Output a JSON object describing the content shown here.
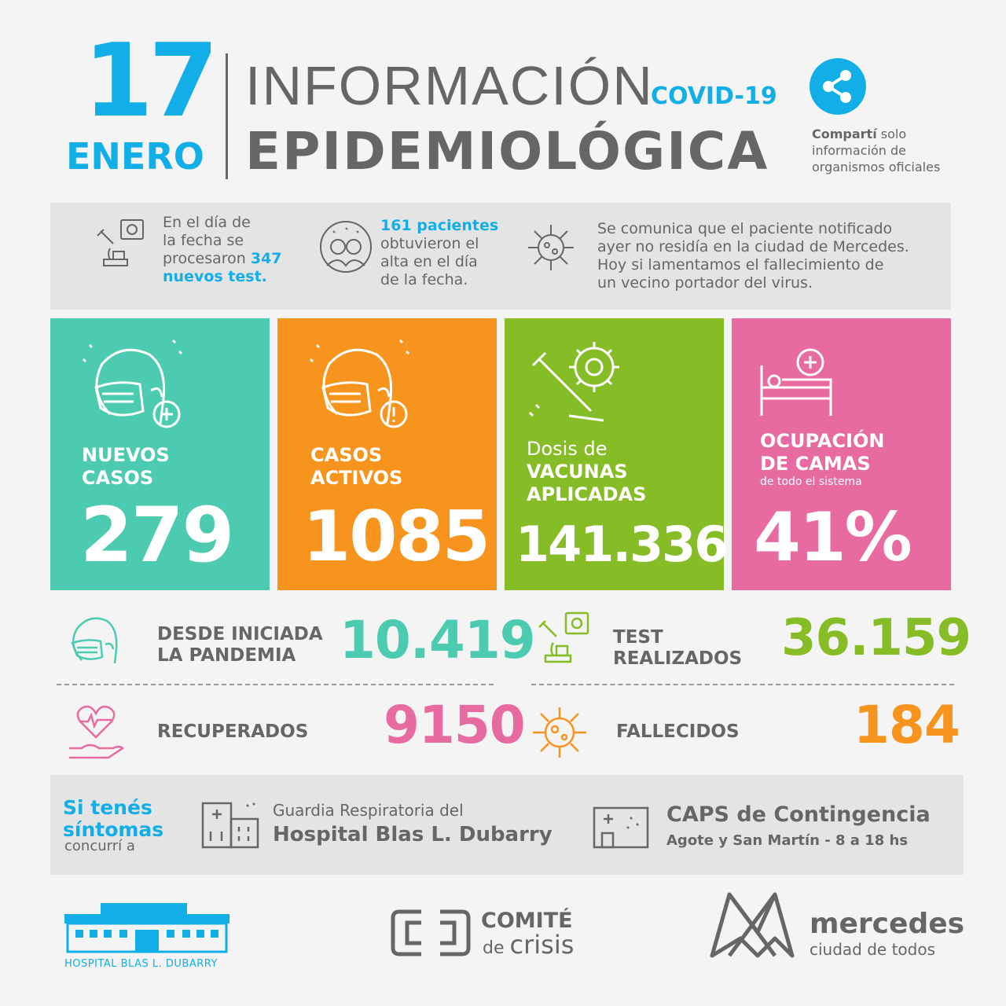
{
  "header": {
    "day": "17",
    "month": "ENERO",
    "title_line1": "INFORMACIÓN",
    "covid_tag": "COVID-19",
    "title_line2": "EPIDEMIOLÓGICA",
    "share_bold": "Compartí",
    "share_rest_1": " solo",
    "share_line2": "información de",
    "share_line3": "organismos oficiales"
  },
  "info": {
    "tests": {
      "l1": "En el día de",
      "l2": "la fecha se",
      "l3": "procesaron ",
      "count": "347",
      "l4": "nuevos test."
    },
    "discharged": {
      "bold": "161 pacientes",
      "l2": "obtuvieron el",
      "l3": "alta en el día",
      "l4": "de la fecha."
    },
    "notice": {
      "l1": "Se comunica que el paciente notificado",
      "l2": "ayer no residía en la ciudad de Mercedes.",
      "l3": "Hoy si lamentamos el fallecimiento de",
      "l4": "un vecino portador del virus."
    }
  },
  "tiles": {
    "new_cases": {
      "l1": "NUEVOS",
      "l2": "CASOS",
      "value": "279",
      "color": "#4ccbb0"
    },
    "active_cases": {
      "l1": "CASOS",
      "l2": "ACTIVOS",
      "value": "1085",
      "color": "#f7941d"
    },
    "vaccines": {
      "pre": "Dosis de",
      "l1": "VACUNAS",
      "l2": "APLICADAS",
      "value": "141.336",
      "color": "#86bc25"
    },
    "beds": {
      "l1": "OCUPACIÓN",
      "l2": "DE CAMAS",
      "sub": "de todo el sistema",
      "value": "41%",
      "color": "#e76aa0"
    }
  },
  "stats": {
    "since_pandemic": {
      "l1": "DESDE INICIADA",
      "l2": "LA PANDEMIA",
      "value": "10.419",
      "color": "#4ccbb0"
    },
    "tests_done": {
      "l1": "TEST",
      "l2": "REALIZADOS",
      "value": "36.159",
      "color": "#86bc25"
    },
    "recovered": {
      "label": "RECUPERADOS",
      "value": "9150",
      "color": "#e76aa0"
    },
    "deceased": {
      "label": "FALLECIDOS",
      "value": "184",
      "color": "#f7941d"
    }
  },
  "symptoms": {
    "l1": "Si tenés",
    "l2": "síntomas",
    "l3": "concurrí a",
    "hospital_pre": "Guardia Respiratoria del",
    "hospital_name": "Hospital Blas L. Dubarry",
    "caps_title": "CAPS de Contingencia",
    "caps_detail": "Agote y San Martín - 8 a 18 hs"
  },
  "footer": {
    "hospital_logo": "HOSPITAL BLAS L. DUBARRY",
    "comite_1": "COMITÉ",
    "comite_2a": "de ",
    "comite_2b": "crisis",
    "mercedes_1": "mercedes",
    "mercedes_2": "ciudad de todos"
  }
}
